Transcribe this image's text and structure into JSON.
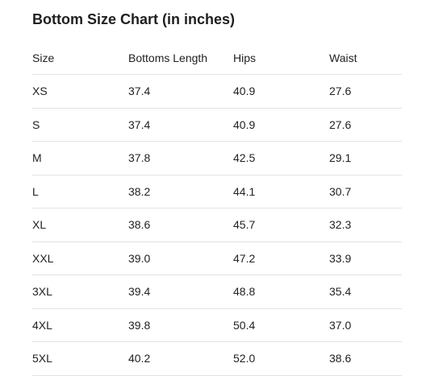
{
  "title": "Bottom Size Chart (in inches)",
  "columns": [
    "Size",
    "Bottoms Length",
    "Hips",
    "Waist"
  ],
  "rows": [
    [
      "XS",
      "37.4",
      "40.9",
      "27.6"
    ],
    [
      "S",
      "37.4",
      "40.9",
      "27.6"
    ],
    [
      "M",
      "37.8",
      "42.5",
      "29.1"
    ],
    [
      "L",
      "38.2",
      "44.1",
      "30.7"
    ],
    [
      "XL",
      "38.6",
      "45.7",
      "32.3"
    ],
    [
      "XXL",
      "39.0",
      "47.2",
      "33.9"
    ],
    [
      "3XL",
      "39.4",
      "48.8",
      "35.4"
    ],
    [
      "4XL",
      "39.8",
      "50.4",
      "37.0"
    ],
    [
      "5XL",
      "40.2",
      "52.0",
      "38.6"
    ]
  ],
  "colors": {
    "text": "#222222",
    "divider": "#e3e3e3",
    "background": "#ffffff"
  }
}
